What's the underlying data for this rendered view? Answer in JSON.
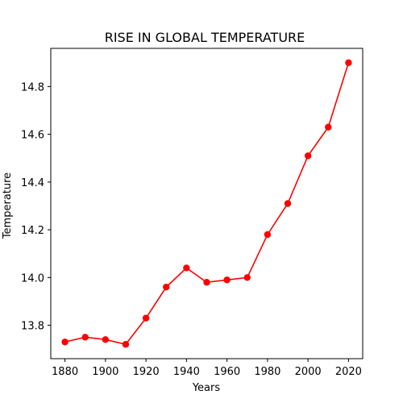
{
  "chart_data": {
    "type": "line",
    "title": "RISE IN GLOBAL TEMPERATURE",
    "xlabel": "Years",
    "ylabel": "Temperature",
    "x": [
      1880,
      1890,
      1900,
      1910,
      1920,
      1930,
      1940,
      1950,
      1960,
      1970,
      1980,
      1990,
      2000,
      2010,
      2020
    ],
    "series": [
      {
        "values": [
          13.73,
          13.75,
          13.74,
          13.72,
          13.83,
          13.96,
          14.04,
          13.98,
          13.99,
          14.0,
          14.18,
          14.31,
          14.51,
          14.63,
          14.9
        ],
        "color": "#ff0000",
        "marker": "circle"
      }
    ],
    "xlim": [
      1873,
      2027
    ],
    "ylim": [
      13.66,
      14.96
    ],
    "xticks": [
      1880,
      1900,
      1920,
      1940,
      1960,
      1980,
      2000,
      2020
    ],
    "yticks": [
      13.8,
      14.0,
      14.2,
      14.4,
      14.6,
      14.8
    ],
    "ytick_labels": [
      "13.8",
      "14.0",
      "14.2",
      "14.4",
      "14.6",
      "14.8"
    ],
    "grid": false,
    "legend": "none"
  }
}
